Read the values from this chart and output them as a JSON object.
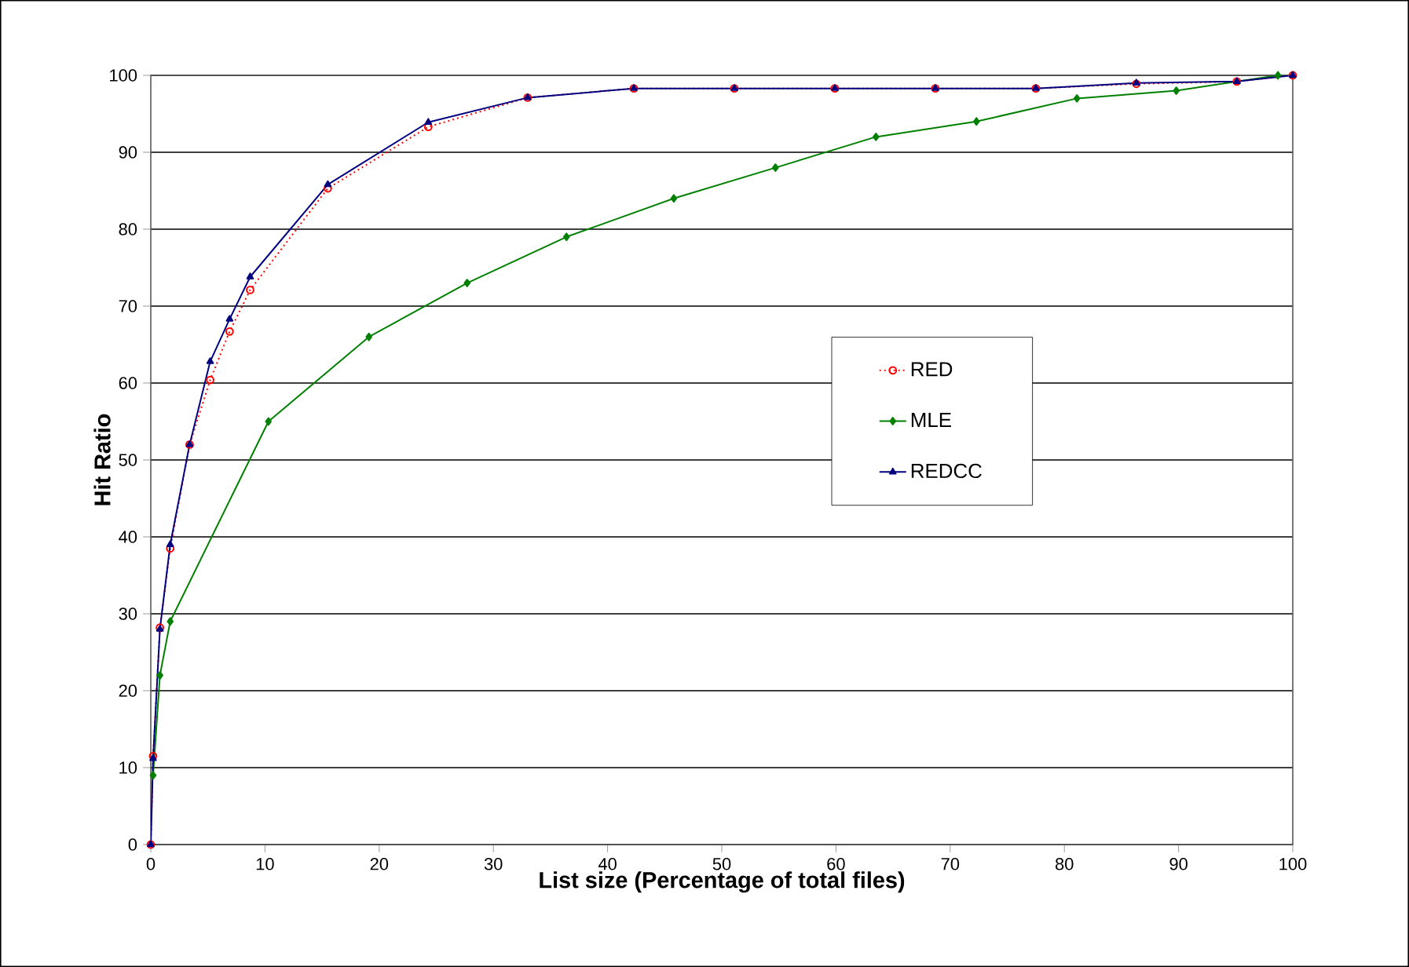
{
  "chart_data": {
    "type": "line",
    "xlabel": "List size (Percentage of total files)",
    "ylabel": "Hit Ratio",
    "xlim": [
      0,
      100
    ],
    "ylim": [
      0,
      100
    ],
    "xticks": [
      0,
      10,
      20,
      30,
      40,
      50,
      60,
      70,
      80,
      90,
      100
    ],
    "yticks": [
      0,
      10,
      20,
      30,
      40,
      50,
      60,
      70,
      80,
      90,
      100
    ],
    "grid": "y",
    "legend": "right",
    "series": [
      {
        "name": "RED",
        "color": "#ff0000",
        "marker": "circle",
        "line_style": "dotted",
        "x": [
          0,
          0.2,
          0.8,
          1.7,
          3.4,
          5.2,
          6.9,
          8.7,
          15.5,
          24.3,
          33,
          42.3,
          51.1,
          59.9,
          68.7,
          77.5,
          86.3,
          95.1,
          100
        ],
        "values": [
          0,
          11.5,
          28.2,
          38.5,
          52,
          60.4,
          66.7,
          72.1,
          85.3,
          93.3,
          97.1,
          98.3,
          98.3,
          98.3,
          98.3,
          98.3,
          98.9,
          99.2,
          100
        ]
      },
      {
        "name": "MLE",
        "color": "#008000",
        "marker": "diamond",
        "line_style": "solid",
        "x": [
          0.2,
          0.8,
          1.7,
          10.3,
          19.1,
          27.7,
          36.4,
          45.8,
          54.7,
          63.5,
          72.3,
          81.1,
          89.8,
          98.7
        ],
        "values": [
          9,
          22,
          29,
          55,
          66,
          73,
          79,
          84,
          88,
          92,
          94,
          97,
          98,
          100
        ]
      },
      {
        "name": "REDCC",
        "color": "#000080",
        "marker": "triangle",
        "line_style": "solid",
        "x": [
          0,
          0.2,
          0.8,
          1.7,
          3.4,
          5.2,
          6.9,
          8.7,
          15.5,
          24.3,
          33,
          42.3,
          51.1,
          59.9,
          68.7,
          77.5,
          86.3,
          95.1,
          100
        ],
        "values": [
          0,
          11.2,
          28,
          39,
          52,
          62.8,
          68.3,
          73.8,
          85.8,
          93.9,
          97.1,
          98.3,
          98.3,
          98.3,
          98.3,
          98.3,
          99,
          99.2,
          100
        ]
      }
    ]
  }
}
